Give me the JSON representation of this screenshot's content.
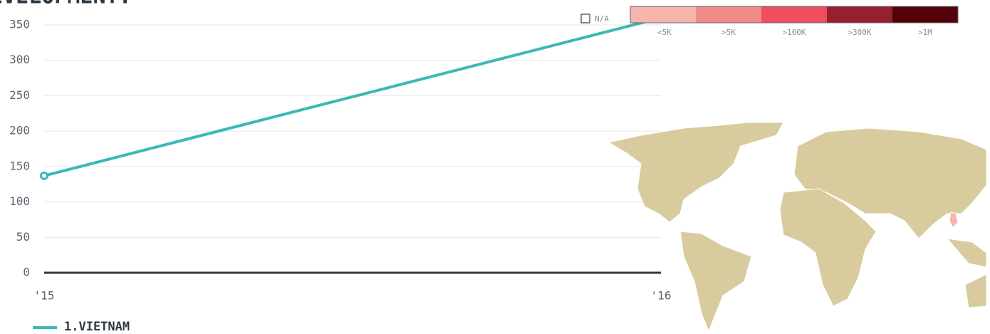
{
  "chart_data": {
    "type": "line",
    "title": "EVELOPMENT:",
    "categories": [
      "'15",
      "'16"
    ],
    "series": [
      {
        "name": "1.VIETNAM",
        "color": "#3db8b5",
        "values": [
          137,
          360
        ]
      }
    ],
    "ylim": [
      0,
      350
    ],
    "yticks": [
      0,
      50,
      100,
      150,
      200,
      250,
      300,
      350
    ],
    "grid": true,
    "na_label": "N/A",
    "color_scale": {
      "labels": [
        "<5K",
        ">5K",
        ">100K",
        ">300K",
        ">1M"
      ],
      "colors": [
        "#f6b5ad",
        "#f08a87",
        "#ef4e5f",
        "#96202e",
        "#530008"
      ]
    }
  }
}
